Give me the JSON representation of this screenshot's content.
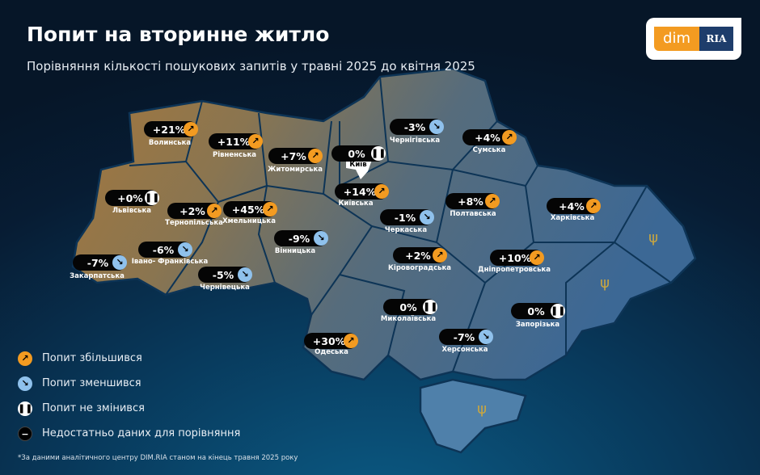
{
  "header": {
    "title": "Попит на вторинне житло",
    "subtitle": "Порівняння кількості пошукових запитів у травні 2025 до квітня 2025"
  },
  "logo": {
    "left": "dim",
    "right": "RIA",
    "colors": {
      "orange": "#f39b21",
      "navy": "#1e3d6b"
    }
  },
  "icons": {
    "up": "arrow-up-right-icon",
    "down": "arrow-down-right-icon",
    "same": "pause-icon",
    "na": "minus-icon"
  },
  "colors": {
    "up": "#f39b21",
    "down": "#8fc1ec",
    "same": "#ffffff"
  },
  "regions": [
    {
      "name": "Волинська",
      "value": "+21%",
      "trend": "up"
    },
    {
      "name": "Рівненська",
      "value": "+11%",
      "trend": "up"
    },
    {
      "name": "Житомирська",
      "value": "+7%",
      "trend": "up"
    },
    {
      "name": "Київ",
      "value": "0%",
      "trend": "same"
    },
    {
      "name": "Київська",
      "value": "+14%",
      "trend": "up"
    },
    {
      "name": "Чернігівська",
      "value": "-3%",
      "trend": "down"
    },
    {
      "name": "Сумська",
      "value": "+4%",
      "trend": "up"
    },
    {
      "name": "Полтавська",
      "value": "+8%",
      "trend": "up"
    },
    {
      "name": "Харківська",
      "value": "+4%",
      "trend": "up"
    },
    {
      "name": "Черкаська",
      "value": "-1%",
      "trend": "down"
    },
    {
      "name": "Кіровоградська",
      "value": "+2%",
      "trend": "up"
    },
    {
      "name": "Дніпропетровська",
      "value": "+10%",
      "trend": "up"
    },
    {
      "name": "Львівська",
      "value": "+0%",
      "trend": "same"
    },
    {
      "name": "Тернопільська",
      "value": "+2%",
      "trend": "up"
    },
    {
      "name": "Хмельницька",
      "value": "+45%",
      "trend": "up"
    },
    {
      "name": "Вінницька",
      "value": "-9%",
      "trend": "down"
    },
    {
      "name": "Івано- Франківська",
      "value": "-6%",
      "trend": "down"
    },
    {
      "name": "Закарпатська",
      "value": "-7%",
      "trend": "down"
    },
    {
      "name": "Чернівецька",
      "value": "-5%",
      "trend": "down"
    },
    {
      "name": "Одеська",
      "value": "+30%",
      "trend": "up"
    },
    {
      "name": "Миколаївська",
      "value": "0%",
      "trend": "same"
    },
    {
      "name": "Херсонська",
      "value": "-7%",
      "trend": "down"
    },
    {
      "name": "Запорізька",
      "value": "0%",
      "trend": "same"
    }
  ],
  "legend": [
    {
      "trend": "up",
      "label": "Попит збільшився"
    },
    {
      "trend": "down",
      "label": "Попит зменшився"
    },
    {
      "trend": "same",
      "label": "Попит не змінився"
    },
    {
      "trend": "na",
      "label": "Недостатньо даних для порівняння"
    }
  ],
  "footnote": "*За даними аналітичного центру DIM.RIA станом на кінець травня 2025 року"
}
